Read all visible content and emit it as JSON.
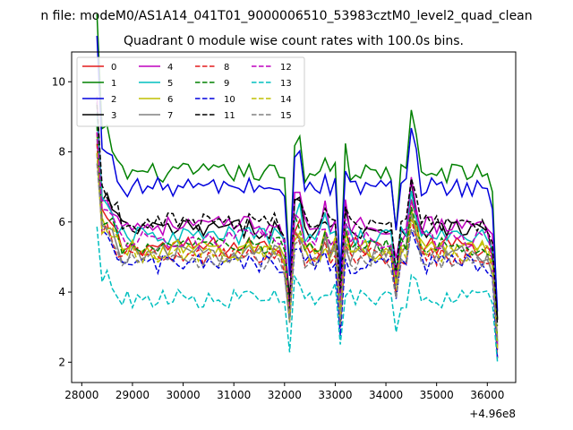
{
  "chart_data": {
    "type": "line",
    "suptitle": "n file: modeM0/AS1A14_041T01_9000006510_53983cztM0_level2_quad_clean",
    "title": "Quadrant 0 module wise count rates with 100.0s bins.",
    "xlabel": "",
    "ylabel": "",
    "x_offset_label": "+4.96e8",
    "xlim": [
      27800,
      36560
    ],
    "ylim": [
      1.42,
      10.85
    ],
    "x_ticks": [
      28000,
      29000,
      30000,
      31000,
      32000,
      33000,
      34000,
      35000,
      36000
    ],
    "y_ticks": [
      2,
      4,
      6,
      8,
      10
    ],
    "grid": false,
    "legend_position": "upper-left",
    "legend_columns": 4,
    "x": [
      28300,
      28400,
      28500,
      28600,
      28700,
      28800,
      28900,
      29000,
      29100,
      29200,
      29300,
      29400,
      29500,
      29600,
      29700,
      29800,
      29900,
      30000,
      30100,
      30200,
      30300,
      30400,
      30500,
      30600,
      30700,
      30800,
      30900,
      31000,
      31100,
      31200,
      31300,
      31400,
      31500,
      31600,
      31700,
      31800,
      31900,
      32000,
      32100,
      32200,
      32300,
      32400,
      32500,
      32600,
      32700,
      32800,
      32900,
      33000,
      33100,
      33200,
      33300,
      33400,
      33500,
      33600,
      33700,
      33800,
      33900,
      34000,
      34100,
      34200,
      34300,
      34400,
      34500,
      34600,
      34700,
      34800,
      34900,
      35000,
      35100,
      35200,
      35300,
      35400,
      35500,
      35600,
      35700,
      35800,
      35900,
      36000,
      36100,
      36200
    ],
    "series": [
      {
        "name": "0",
        "color": "#e41a1c",
        "dash": "solid",
        "base": 5.3
      },
      {
        "name": "1",
        "color": "#008000",
        "dash": "solid",
        "base": 7.4
      },
      {
        "name": "2",
        "color": "#0000dd",
        "dash": "solid",
        "base": 7.0
      },
      {
        "name": "3",
        "color": "#000000",
        "dash": "solid",
        "base": 5.8
      },
      {
        "name": "4",
        "color": "#bf00bf",
        "dash": "solid",
        "base": 5.9
      },
      {
        "name": "5",
        "color": "#00bfbf",
        "dash": "solid",
        "base": 5.6
      },
      {
        "name": "6",
        "color": "#bfbf00",
        "dash": "solid",
        "base": 5.2
      },
      {
        "name": "7",
        "color": "#808080",
        "dash": "solid",
        "base": 5.1
      },
      {
        "name": "8",
        "color": "#e41a1c",
        "dash": "dashed",
        "base": 5.0
      },
      {
        "name": "9",
        "color": "#008000",
        "dash": "dashed",
        "base": 5.3
      },
      {
        "name": "10",
        "color": "#0000dd",
        "dash": "dashed",
        "base": 4.8
      },
      {
        "name": "11",
        "color": "#000000",
        "dash": "dashed",
        "base": 6.0
      },
      {
        "name": "12",
        "color": "#bf00bf",
        "dash": "dashed",
        "base": 5.5
      },
      {
        "name": "13",
        "color": "#00bfbf",
        "dash": "dashed",
        "base": 3.8
      },
      {
        "name": "14",
        "color": "#bfbf00",
        "dash": "dashed",
        "base": 5.1
      },
      {
        "name": "15",
        "color": "#808080",
        "dash": "dashed",
        "base": 4.9
      }
    ]
  }
}
